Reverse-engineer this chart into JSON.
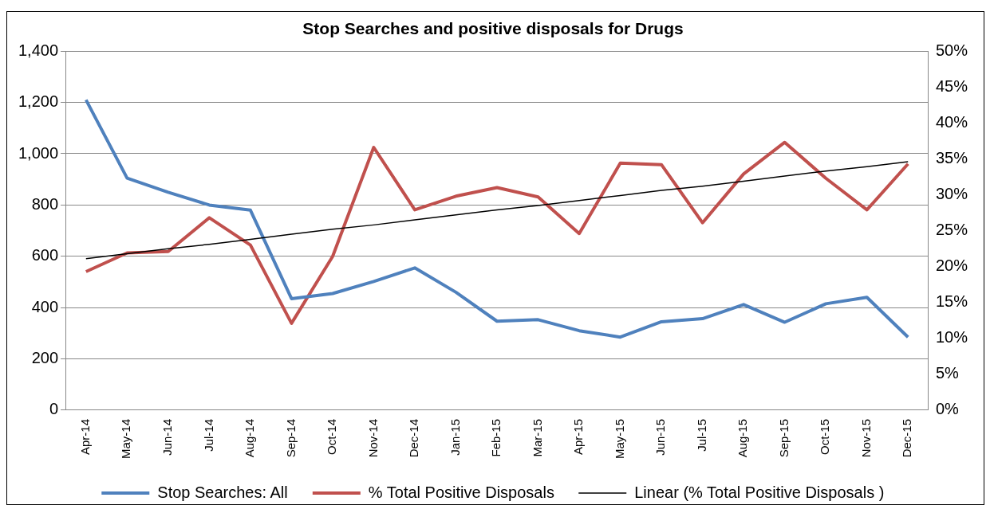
{
  "chart_data": {
    "type": "line",
    "title": "Stop Searches and positive disposals for Drugs",
    "categories": [
      "Apr-14",
      "May-14",
      "Jun-14",
      "Jul-14",
      "Aug-14",
      "Sep-14",
      "Oct-14",
      "Nov-14",
      "Dec-14",
      "Jan-15",
      "Feb-15",
      "Mar-15",
      "Apr-15",
      "May-15",
      "Jun-15",
      "Jul-15",
      "Aug-15",
      "Sep-15",
      "Oct-15",
      "Nov-15",
      "Dec-15"
    ],
    "series": [
      {
        "name": "Stop Searches: All",
        "color": "#4f81bd",
        "values": [
          1210,
          905,
          850,
          800,
          780,
          435,
          455,
          502,
          555,
          460,
          347,
          353,
          310,
          285,
          345,
          357,
          412,
          343,
          415,
          440,
          285
        ]
      },
      {
        "name": "% Total Positive Disposals",
        "color": "#c0504d",
        "axis": "y2",
        "values": [
          19.3,
          21.9,
          22.1,
          26.8,
          23.0,
          12.1,
          21.4,
          36.6,
          27.9,
          29.8,
          31.0,
          29.7,
          24.6,
          34.4,
          34.2,
          26.1,
          32.9,
          37.3,
          32.3,
          27.9,
          34.3
        ]
      },
      {
        "name": "Linear (% Total Positive Disposals )",
        "color": "#000000",
        "axis": "y2",
        "values": [
          21.1,
          21.8,
          22.5,
          23.1,
          23.8,
          24.5,
          25.2,
          25.8,
          26.5,
          27.2,
          27.9,
          28.5,
          29.2,
          29.9,
          30.6,
          31.2,
          31.9,
          32.6,
          33.3,
          33.9,
          34.6
        ]
      }
    ],
    "ylim": [
      0,
      1400
    ],
    "yticks": [
      0,
      {
        "value": 200,
        "label": "200"
      },
      {
        "value": 400,
        "label": "400"
      },
      {
        "value": 600,
        "label": "600"
      },
      {
        "value": 800,
        "label": "800"
      },
      {
        "value": 1000,
        "label": "1,000"
      },
      {
        "value": 1200,
        "label": "1,200"
      },
      {
        "value": 1400,
        "label": "1,400"
      }
    ],
    "y2lim": [
      0,
      50
    ],
    "y2ticks": [
      {
        "value": 0,
        "label": "0%"
      },
      {
        "value": 5,
        "label": "5%"
      },
      {
        "value": 10,
        "label": "10%"
      },
      {
        "value": 15,
        "label": "15%"
      },
      {
        "value": 20,
        "label": "20%"
      },
      {
        "value": 25,
        "label": "25%"
      },
      {
        "value": 30,
        "label": "30%"
      },
      {
        "value": 35,
        "label": "35%"
      },
      {
        "value": 40,
        "label": "40%"
      },
      {
        "value": 45,
        "label": "45%"
      },
      {
        "value": 50,
        "label": "50%"
      }
    ],
    "grid": "y",
    "legend": "bottom",
    "marker": "none"
  }
}
